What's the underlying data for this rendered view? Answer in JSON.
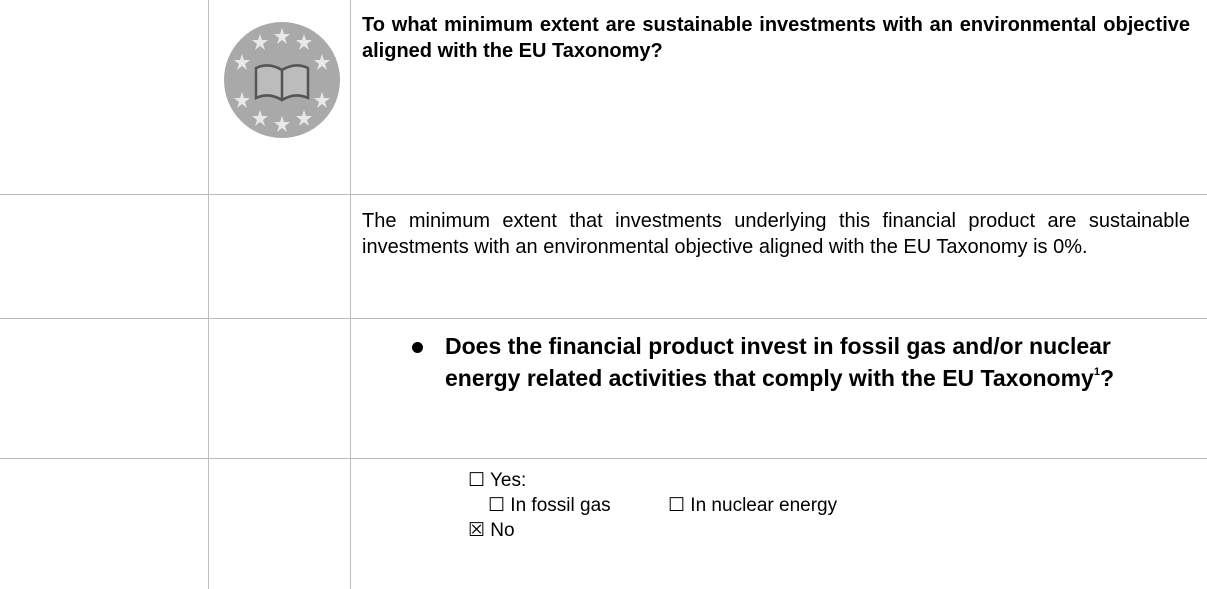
{
  "question": "To what minimum extent are sustainable investments with an environmental objective aligned with the EU Taxonomy?",
  "answer": "The minimum extent that investments underlying this financial product are sustainable investments with an environmental objective aligned with the EU Taxonomy is 0%.",
  "sub_question": {
    "text": "Does the financial product invest in fossil gas and/or nuclear energy related activities that comply with the EU Taxonomy",
    "footnote": "1",
    "end": "?"
  },
  "options": {
    "yes": "☐ Yes:",
    "fossil_gas": "☐ In fossil gas",
    "nuclear_energy": "☐ In nuclear energy",
    "no": "☒ No"
  }
}
